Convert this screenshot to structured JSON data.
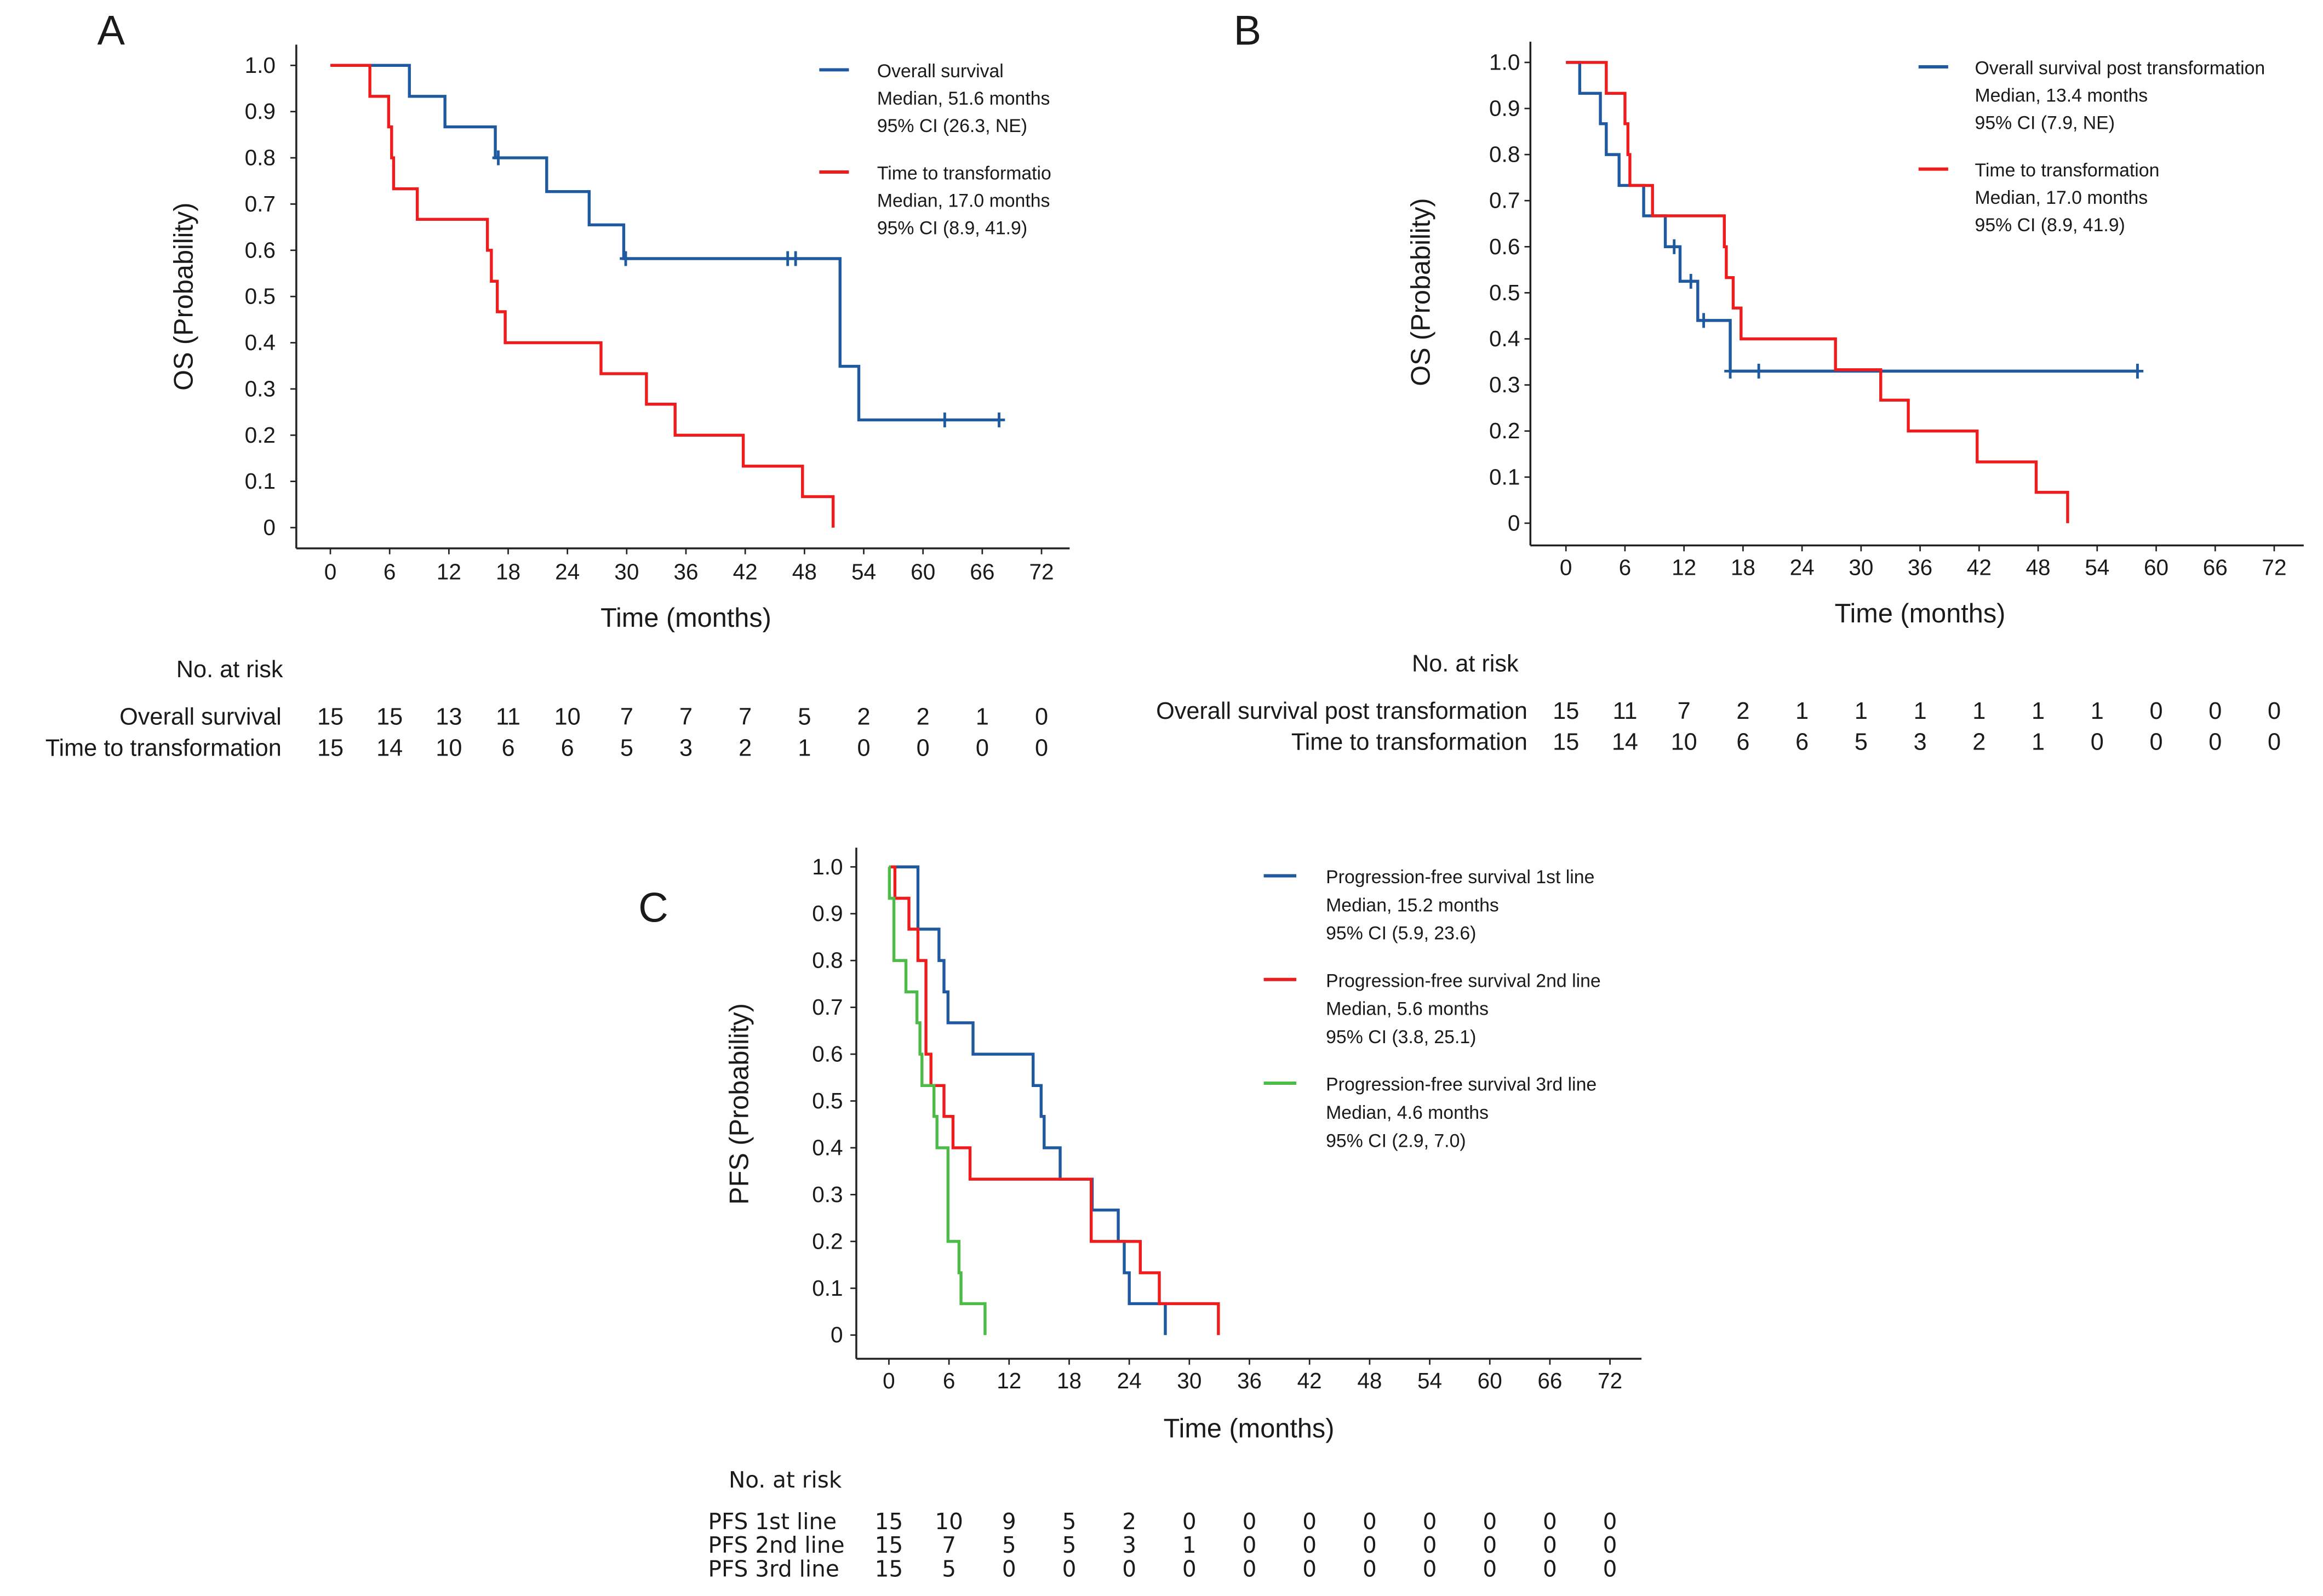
{
  "chart_data": [
    {
      "type": "line",
      "panel": "A",
      "xlabel": "Time (months)",
      "ylabel": "OS (Probability)",
      "xlim": [
        0,
        72
      ],
      "ylim": [
        0,
        1
      ],
      "xticks": [
        "0",
        "6",
        "12",
        "18",
        "24",
        "30",
        "36",
        "42",
        "48",
        "54",
        "60",
        "66",
        "72"
      ],
      "yticks": [
        "0",
        "0.1",
        "0.2",
        "0.3",
        "0.4",
        "0.5",
        "0.6",
        "0.7",
        "0.8",
        "0.9",
        "1.0"
      ],
      "grid": false,
      "legend_position": "top-right",
      "series": [
        {
          "name": "Overall survival",
          "legend_lines": [
            "Overall survival",
            "Median, 51.6 months",
            "95% CI (26.3, NE)"
          ],
          "color": "#1f5aa0",
          "steps": [
            [
              8.0,
              0.933
            ],
            [
              11.6,
              0.867
            ],
            [
              16.7,
              0.8
            ],
            [
              21.9,
              0.727
            ],
            [
              26.2,
              0.655
            ],
            [
              29.7,
              0.582
            ],
            [
              51.6,
              0.349
            ],
            [
              53.5,
              0.233
            ]
          ],
          "censored": [
            [
              17.0,
              0.8
            ],
            [
              29.9,
              0.582
            ],
            [
              46.3,
              0.582
            ],
            [
              47.1,
              0.582
            ],
            [
              62.2,
              0.233
            ],
            [
              67.7,
              0.233
            ]
          ],
          "end": 67.7
        },
        {
          "name": "Time to transformation",
          "legend_lines": [
            "Time to transformatio",
            "Median, 17.0 months",
            "95% CI (8.9, 41.9)"
          ],
          "color": "#ee1c1c",
          "steps": [
            [
              4.0,
              0.933
            ],
            [
              5.9,
              0.867
            ],
            [
              6.2,
              0.8
            ],
            [
              6.4,
              0.733
            ],
            [
              8.8,
              0.667
            ],
            [
              15.9,
              0.6
            ],
            [
              16.3,
              0.533
            ],
            [
              16.9,
              0.467
            ],
            [
              17.7,
              0.4
            ],
            [
              27.4,
              0.333
            ],
            [
              32.0,
              0.267
            ],
            [
              34.9,
              0.2
            ],
            [
              41.8,
              0.133
            ],
            [
              47.8,
              0.067
            ],
            [
              50.9,
              0
            ]
          ],
          "censored": [],
          "end": 50.9
        }
      ],
      "risk_table": {
        "title": "No. at risk",
        "rows": [
          {
            "label": "Overall survival",
            "values": [
              "15",
              "15",
              "13",
              "11",
              "10",
              "7",
              "7",
              "7",
              "5",
              "2",
              "2",
              "1",
              "0"
            ]
          },
          {
            "label": "Time to transformation",
            "values": [
              "15",
              "14",
              "10",
              "6",
              "6",
              "5",
              "3",
              "2",
              "1",
              "0",
              "0",
              "0",
              "0"
            ]
          }
        ]
      }
    },
    {
      "type": "line",
      "panel": "B",
      "xlabel": "Time (months)",
      "ylabel": "OS (Probability)",
      "xlim": [
        0,
        72
      ],
      "ylim": [
        0,
        1
      ],
      "xticks": [
        "0",
        "6",
        "12",
        "18",
        "24",
        "30",
        "36",
        "42",
        "48",
        "54",
        "60",
        "66",
        "72"
      ],
      "yticks": [
        "0",
        "0.1",
        "0.2",
        "0.3",
        "0.4",
        "0.5",
        "0.6",
        "0.7",
        "0.8",
        "0.9",
        "1.0"
      ],
      "grid": false,
      "legend_position": "top-right",
      "series": [
        {
          "name": "Overall survival post transformation",
          "legend_lines": [
            "Overall survival post transformation",
            "Median, 13.4 months",
            "95% CI (7.9, NE)"
          ],
          "color": "#1f5aa0",
          "steps": [
            [
              1.4,
              0.933
            ],
            [
              3.5,
              0.867
            ],
            [
              4.1,
              0.8
            ],
            [
              5.4,
              0.733
            ],
            [
              7.9,
              0.667
            ],
            [
              10.1,
              0.6
            ],
            [
              11.6,
              0.525
            ],
            [
              13.4,
              0.44
            ],
            [
              16.7,
              0.33
            ]
          ],
          "censored": [
            [
              11.0,
              0.6
            ],
            [
              12.7,
              0.525
            ],
            [
              14.0,
              0.44
            ],
            [
              16.7,
              0.33
            ],
            [
              19.6,
              0.33
            ],
            [
              58.1,
              0.33
            ]
          ],
          "end": 58.1
        },
        {
          "name": "Time to transformation",
          "legend_lines": [
            "Time to transformation",
            "Median, 17.0 months",
            "95% CI (8.9, 41.9)"
          ],
          "color": "#ee1c1c",
          "steps": [
            [
              4.1,
              0.933
            ],
            [
              6.0,
              0.867
            ],
            [
              6.3,
              0.8
            ],
            [
              6.5,
              0.733
            ],
            [
              8.8,
              0.667
            ],
            [
              16.1,
              0.6
            ],
            [
              16.3,
              0.533
            ],
            [
              17.0,
              0.467
            ],
            [
              17.8,
              0.4
            ],
            [
              27.4,
              0.333
            ],
            [
              32.0,
              0.267
            ],
            [
              34.8,
              0.2
            ],
            [
              41.8,
              0.133
            ],
            [
              47.8,
              0.067
            ],
            [
              51.0,
              0
            ]
          ],
          "censored": [],
          "end": 51.0
        }
      ],
      "risk_table": {
        "title": "No. at risk",
        "rows": [
          {
            "label": "Overall survival post transformation",
            "values": [
              "15",
              "11",
              "7",
              "2",
              "1",
              "1",
              "1",
              "1",
              "1",
              "1",
              "0",
              "0",
              "0"
            ]
          },
          {
            "label": "Time to transformation",
            "values": [
              "15",
              "14",
              "10",
              "6",
              "6",
              "5",
              "3",
              "2",
              "1",
              "0",
              "0",
              "0",
              "0"
            ]
          }
        ]
      }
    },
    {
      "type": "line",
      "panel": "C",
      "xlabel": "Time (months)",
      "ylabel": "PFS (Probability)",
      "xlim": [
        0,
        72
      ],
      "ylim": [
        0,
        1
      ],
      "xticks": [
        "0",
        "6",
        "12",
        "18",
        "24",
        "30",
        "36",
        "42",
        "48",
        "54",
        "60",
        "66",
        "72"
      ],
      "yticks": [
        "0",
        "0.1",
        "0.2",
        "0.3",
        "0.4",
        "0.5",
        "0.6",
        "0.7",
        "0.8",
        "0.9",
        "1.0"
      ],
      "grid": false,
      "legend_position": "top-right",
      "series": [
        {
          "name": "Progression-free survival 1st line",
          "legend_lines": [
            "Progression-free survival 1st line",
            "Median, 15.2 months",
            "95% CI (5.9, 23.6)"
          ],
          "color": "#1f5aa0",
          "steps": [
            [
              2.9,
              0.867
            ],
            [
              5.0,
              0.8
            ],
            [
              5.5,
              0.733
            ],
            [
              5.9,
              0.667
            ],
            [
              8.4,
              0.6
            ],
            [
              14.4,
              0.533
            ],
            [
              15.2,
              0.467
            ],
            [
              15.5,
              0.4
            ],
            [
              17.1,
              0.333
            ],
            [
              20.3,
              0.267
            ],
            [
              22.9,
              0.2
            ],
            [
              23.5,
              0.133
            ],
            [
              24.0,
              0.067
            ],
            [
              27.6,
              0
            ]
          ],
          "censored": [],
          "end": 27.6
        },
        {
          "name": "Progression-free survival 2nd line",
          "legend_lines": [
            "Progression-free survival 2nd line",
            "Median, 5.6 months",
            "95% CI (3.8, 25.1)"
          ],
          "color": "#ee1c1c",
          "steps": [
            [
              0.6,
              0.933
            ],
            [
              2.0,
              0.867
            ],
            [
              2.9,
              0.8
            ],
            [
              3.7,
              0.6
            ],
            [
              4.2,
              0.533
            ],
            [
              5.5,
              0.467
            ],
            [
              6.4,
              0.4
            ],
            [
              8.1,
              0.333
            ],
            [
              20.2,
              0.2
            ],
            [
              25.1,
              0.133
            ],
            [
              27.0,
              0.067
            ],
            [
              32.9,
              0
            ]
          ],
          "censored": [],
          "end": 32.9
        },
        {
          "name": "Progression-free survival 3rd line",
          "legend_lines": [
            "Progression-free survival 3rd line",
            "Median, 4.6 months",
            "95% CI (2.9, 7.0)"
          ],
          "color": "#4cbb47",
          "steps": [
            [
              0.05,
              0.933
            ],
            [
              0.5,
              0.8
            ],
            [
              1.7,
              0.733
            ],
            [
              2.8,
              0.667
            ],
            [
              3.1,
              0.6
            ],
            [
              3.3,
              0.533
            ],
            [
              4.5,
              0.467
            ],
            [
              4.8,
              0.4
            ],
            [
              5.9,
              0.333
            ],
            [
              5.9,
              0.2
            ],
            [
              7.0,
              0.133
            ],
            [
              7.2,
              0.067
            ],
            [
              9.6,
              0
            ]
          ],
          "censored": [],
          "end": 9.6
        }
      ],
      "risk_table": {
        "title": "No. at risk",
        "rows": [
          {
            "label": "PFS 1st line",
            "values": [
              "15",
              "10",
              "9",
              "5",
              "2",
              "0",
              "0",
              "0",
              "0",
              "0",
              "0",
              "0",
              "0"
            ]
          },
          {
            "label": "PFS 2nd line",
            "values": [
              "15",
              "7",
              "5",
              "5",
              "3",
              "1",
              "0",
              "0",
              "0",
              "0",
              "0",
              "0",
              "0"
            ]
          },
          {
            "label": "PFS 3rd line",
            "values": [
              "15",
              "5",
              "0",
              "0",
              "0",
              "0",
              "0",
              "0",
              "0",
              "0",
              "0",
              "0",
              "0"
            ]
          }
        ]
      }
    }
  ]
}
